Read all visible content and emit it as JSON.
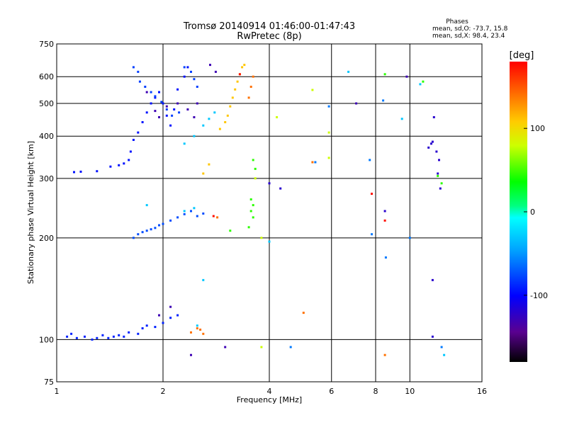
{
  "chart_data": {
    "type": "scatter",
    "title": "Tromsø 20140914 01:46:00-01:47:43",
    "subtitle": "RwPretec (8p)",
    "xlabel": "Frequency [MHz]",
    "ylabel": "Stationary phase Virtual Height [km]",
    "x_scale": "log",
    "y_scale": "log",
    "xlim": [
      1,
      16
    ],
    "ylim": [
      75,
      750
    ],
    "x_ticks": [
      1,
      2,
      4,
      6,
      8,
      10,
      16
    ],
    "y_ticks": [
      75,
      100,
      200,
      300,
      400,
      500,
      600,
      750
    ],
    "grid": true,
    "legend_info": {
      "header": "Phases",
      "line1": "mean, sd,O: -73.7, 15.8",
      "line2": "mean, sd,X:  98.4, 23.4"
    },
    "colorbar": {
      "label": "[deg]",
      "range": [
        -180,
        180
      ],
      "ticks": [
        100,
        0,
        -100
      ]
    },
    "clusters": [
      {
        "phase": -90,
        "points": [
          [
            1.07,
            102
          ],
          [
            1.1,
            104
          ],
          [
            1.14,
            101
          ],
          [
            1.2,
            102
          ],
          [
            1.26,
            100
          ],
          [
            1.3,
            101
          ],
          [
            1.35,
            103
          ],
          [
            1.4,
            101
          ],
          [
            1.45,
            102
          ],
          [
            1.5,
            103
          ],
          [
            1.55,
            102
          ],
          [
            1.6,
            105
          ],
          [
            1.7,
            104
          ],
          [
            1.75,
            108
          ],
          [
            1.8,
            110
          ],
          [
            1.9,
            109
          ],
          [
            2.0,
            112
          ],
          [
            2.1,
            116
          ],
          [
            2.2,
            118
          ]
        ]
      },
      {
        "phase": -95,
        "points": [
          [
            1.12,
            313
          ],
          [
            1.17,
            314
          ],
          [
            1.3,
            315
          ],
          [
            1.42,
            325
          ],
          [
            1.5,
            328
          ],
          [
            1.55,
            332
          ],
          [
            1.6,
            340
          ],
          [
            1.62,
            360
          ],
          [
            1.65,
            390
          ],
          [
            1.7,
            410
          ],
          [
            1.75,
            440
          ],
          [
            1.8,
            470
          ],
          [
            1.85,
            500
          ],
          [
            1.9,
            520
          ],
          [
            1.95,
            540
          ],
          [
            2.0,
            500
          ],
          [
            2.05,
            460
          ],
          [
            2.1,
            430
          ],
          [
            2.15,
            480
          ],
          [
            2.2,
            550
          ],
          [
            2.3,
            600
          ],
          [
            2.35,
            640
          ]
        ]
      },
      {
        "phase": -75,
        "points": [
          [
            1.65,
            200
          ],
          [
            1.7,
            205
          ],
          [
            1.75,
            208
          ],
          [
            1.8,
            210
          ],
          [
            1.85,
            212
          ],
          [
            1.9,
            214
          ],
          [
            1.95,
            218
          ],
          [
            2.0,
            220
          ],
          [
            2.1,
            225
          ],
          [
            2.2,
            230
          ],
          [
            2.3,
            235
          ],
          [
            2.4,
            240
          ],
          [
            2.5,
            232
          ],
          [
            2.6,
            236
          ]
        ]
      },
      {
        "phase": -80,
        "points": [
          [
            1.65,
            640
          ],
          [
            1.7,
            620
          ],
          [
            1.72,
            580
          ],
          [
            1.78,
            560
          ],
          [
            1.85,
            540
          ],
          [
            1.9,
            525
          ],
          [
            1.98,
            505
          ],
          [
            2.05,
            480
          ],
          [
            2.12,
            460
          ],
          [
            2.22,
            470
          ],
          [
            2.3,
            640
          ],
          [
            2.4,
            620
          ],
          [
            2.45,
            590
          ],
          [
            2.5,
            560
          ]
        ]
      },
      {
        "phase": -130,
        "points": [
          [
            1.8,
            540
          ],
          [
            1.9,
            475
          ],
          [
            1.95,
            455
          ],
          [
            2.05,
            490
          ],
          [
            2.2,
            500
          ],
          [
            2.35,
            480
          ],
          [
            2.45,
            455
          ],
          [
            2.5,
            500
          ],
          [
            2.72,
            650
          ],
          [
            2.82,
            620
          ],
          [
            1.95,
            118
          ],
          [
            2.1,
            125
          ],
          [
            2.4,
            90
          ],
          [
            3.0,
            95
          ],
          [
            7.05,
            500
          ],
          [
            9.8,
            600
          ]
        ]
      },
      {
        "phase": -30,
        "points": [
          [
            2.3,
            380
          ],
          [
            2.45,
            400
          ],
          [
            2.6,
            430
          ],
          [
            2.7,
            450
          ],
          [
            2.8,
            470
          ],
          [
            2.3,
            240
          ],
          [
            2.45,
            245
          ],
          [
            1.8,
            250
          ],
          [
            2.5,
            110
          ],
          [
            2.6,
            150
          ],
          [
            4.0,
            195
          ],
          [
            6.7,
            620
          ],
          [
            9.5,
            450
          ],
          [
            10.7,
            570
          ],
          [
            12.5,
            90
          ]
        ]
      },
      {
        "phase": 110,
        "points": [
          [
            2.9,
            420
          ],
          [
            3.0,
            440
          ],
          [
            3.05,
            460
          ],
          [
            3.1,
            490
          ],
          [
            3.15,
            520
          ],
          [
            3.2,
            550
          ],
          [
            3.25,
            580
          ],
          [
            3.3,
            610
          ],
          [
            3.35,
            640
          ],
          [
            3.4,
            650
          ],
          [
            2.7,
            330
          ],
          [
            2.6,
            310
          ]
        ]
      },
      {
        "phase": 140,
        "points": [
          [
            2.4,
            105
          ],
          [
            2.5,
            108
          ],
          [
            2.6,
            104
          ],
          [
            2.55,
            107
          ],
          [
            3.5,
            520
          ],
          [
            3.55,
            560
          ],
          [
            3.6,
            600
          ],
          [
            2.85,
            230
          ],
          [
            5.3,
            335
          ],
          [
            5.0,
            120
          ],
          [
            8.5,
            90
          ]
        ]
      },
      {
        "phase": 45,
        "points": [
          [
            3.55,
            240
          ],
          [
            3.6,
            250
          ],
          [
            3.55,
            260
          ],
          [
            3.6,
            230
          ],
          [
            3.5,
            215
          ],
          [
            3.1,
            210
          ],
          [
            3.65,
            320
          ],
          [
            3.6,
            340
          ],
          [
            8.5,
            610
          ],
          [
            10.9,
            580
          ],
          [
            12.0,
            305
          ],
          [
            12.3,
            290
          ]
        ]
      },
      {
        "phase": 175,
        "points": [
          [
            2.78,
            232
          ],
          [
            3.3,
            610
          ],
          [
            7.8,
            270
          ],
          [
            8.5,
            225
          ]
        ]
      },
      {
        "phase": -120,
        "points": [
          [
            4.0,
            290
          ],
          [
            4.3,
            280
          ],
          [
            8.5,
            240
          ],
          [
            11.5,
            380
          ],
          [
            11.9,
            360
          ],
          [
            12.1,
            340
          ],
          [
            11.6,
            385
          ],
          [
            11.7,
            455
          ],
          [
            11.3,
            370
          ],
          [
            12.0,
            310
          ],
          [
            12.2,
            280
          ],
          [
            11.6,
            150
          ],
          [
            11.6,
            102
          ]
        ]
      },
      {
        "phase": -60,
        "points": [
          [
            4.6,
            95
          ],
          [
            5.4,
            335
          ],
          [
            5.9,
            490
          ],
          [
            7.7,
            340
          ],
          [
            7.8,
            205
          ],
          [
            8.55,
            175
          ],
          [
            8.4,
            510
          ],
          [
            10.0,
            200
          ],
          [
            12.3,
            95
          ]
        ]
      },
      {
        "phase": 80,
        "points": [
          [
            3.8,
            95
          ],
          [
            4.2,
            455
          ],
          [
            5.3,
            548
          ],
          [
            5.9,
            345
          ],
          [
            5.9,
            410
          ],
          [
            3.8,
            200
          ],
          [
            3.65,
            300
          ]
        ]
      }
    ]
  }
}
